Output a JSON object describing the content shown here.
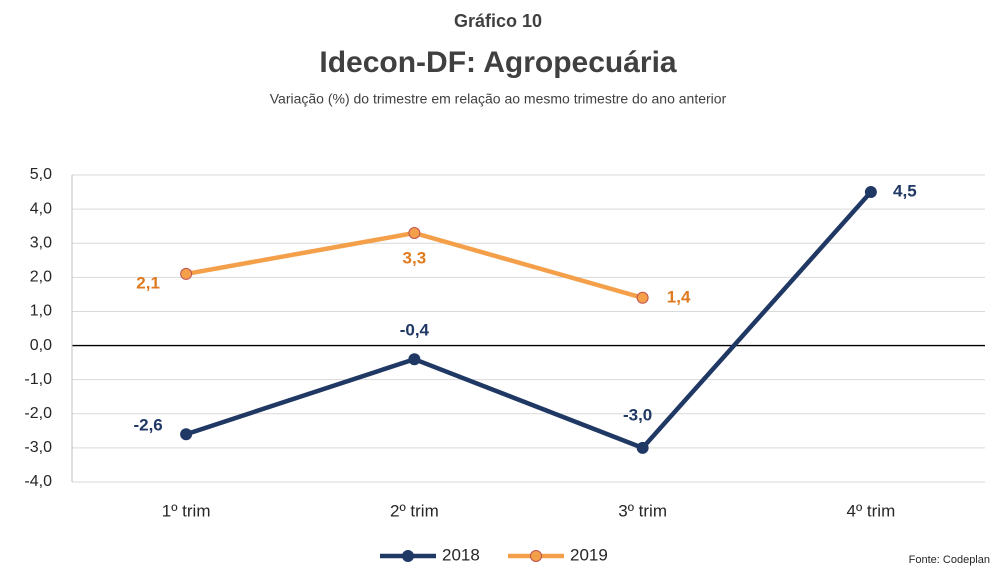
{
  "chart_data": {
    "type": "line",
    "kicker": "Gráfico 10",
    "title": "Idecon-DF: Agropecuária",
    "subtitle": "Variação (%) do trimestre em relação ao mesmo trimestre do ano anterior",
    "source": "Fonte: Codeplan",
    "categories": [
      "1º trim",
      "2º trim",
      "3º trim",
      "4º trim"
    ],
    "series": [
      {
        "name": "2018",
        "color": "#203864",
        "values": [
          -2.6,
          -0.4,
          -3.0,
          4.5
        ],
        "value_labels": [
          "-2,6",
          "-0,4",
          "-3,0",
          "4,5"
        ]
      },
      {
        "name": "2019",
        "color": "#f4a04a",
        "label_color": "#e07a1f",
        "values": [
          2.1,
          3.3,
          1.4,
          null
        ],
        "value_labels": [
          "2,1",
          "3,3",
          "1,4",
          null
        ]
      }
    ],
    "ylim": [
      -4,
      5
    ],
    "yticks": [
      {
        "value": 5,
        "label": "5,0"
      },
      {
        "value": 4,
        "label": "4,0"
      },
      {
        "value": 3,
        "label": "3,0"
      },
      {
        "value": 2,
        "label": "2,0"
      },
      {
        "value": 1,
        "label": "1,0"
      },
      {
        "value": 0,
        "label": "0,0"
      },
      {
        "value": -1,
        "label": "-1,0"
      },
      {
        "value": -2,
        "label": "-2,0"
      },
      {
        "value": -3,
        "label": "-3,0"
      },
      {
        "value": -4,
        "label": "-4,0"
      }
    ],
    "grid": true,
    "legend": "bottom"
  }
}
